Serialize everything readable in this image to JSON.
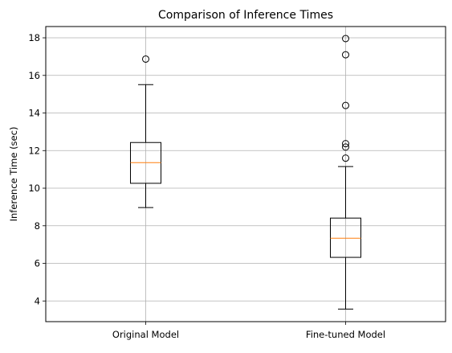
{
  "chart_data": {
    "type": "box",
    "title": "Comparison of Inference Times",
    "xlabel": "",
    "ylabel": "Inference Time (sec)",
    "categories": [
      "Original Model",
      "Fine-tuned Model"
    ],
    "ylim": [
      2.9,
      18.6
    ],
    "yticks": [
      4,
      6,
      8,
      10,
      12,
      14,
      16,
      18
    ],
    "grid": true,
    "colors": {
      "box": "#000000",
      "median": "#ff7f0e",
      "grid": "#b0b0b0"
    },
    "boxes": [
      {
        "category": "Original Model",
        "whisker_low": 8.97,
        "q1": 10.26,
        "median": 11.36,
        "q3": 12.43,
        "whisker_high": 15.51,
        "outliers": [
          16.87
        ]
      },
      {
        "category": "Fine-tuned Model",
        "whisker_low": 3.57,
        "q1": 6.32,
        "median": 7.34,
        "q3": 8.41,
        "whisker_high": 11.15,
        "outliers": [
          11.6,
          12.19,
          12.37,
          14.4,
          17.1,
          17.96
        ]
      }
    ]
  }
}
